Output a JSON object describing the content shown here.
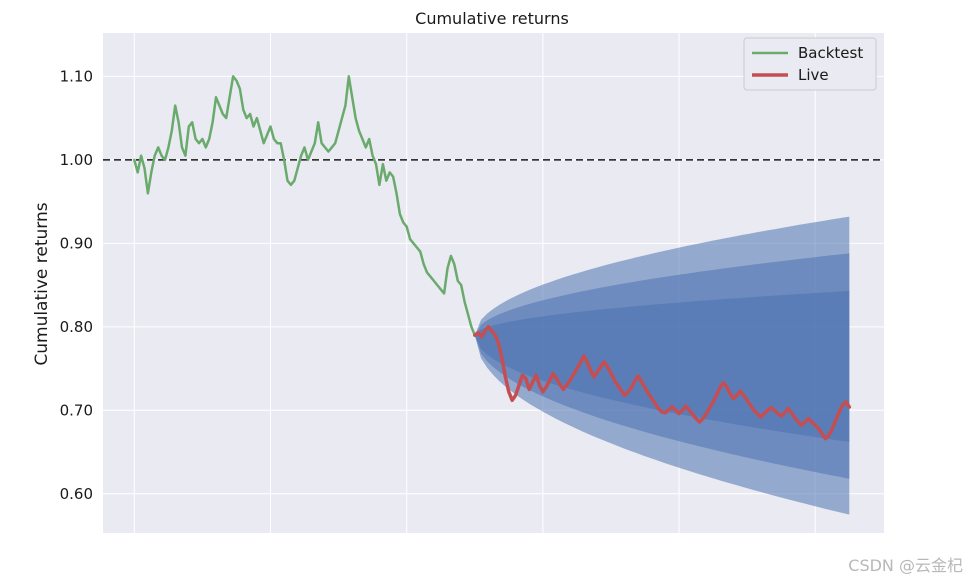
{
  "watermark": "CSDN @云金杞",
  "chart_data": {
    "type": "line",
    "title": "Cumulative returns",
    "ylabel": "Cumulative returns",
    "xlabel": "",
    "ylim": [
      0.553,
      1.152
    ],
    "yticks": [
      0.6,
      0.7,
      0.8,
      0.9,
      1.0,
      1.1
    ],
    "ytick_labels": [
      "0.60",
      "0.70",
      "0.80",
      "0.90",
      "1.00",
      "1.10"
    ],
    "x_unlabeled_gridlines": 6,
    "reference_line": {
      "y": 1.0,
      "style": "dashed"
    },
    "grid": true,
    "legend": {
      "position": "top-right"
    },
    "colors": {
      "background": "#eaeaf2",
      "grid": "#ffffff",
      "backtest": "#6aaa6d",
      "live": "#c44e52",
      "cone": "#4c72b0",
      "reference": "#1a1a1a"
    },
    "series": [
      {
        "name": "Backtest",
        "x": [
          0,
          1,
          2,
          3,
          4,
          5,
          6,
          7,
          8,
          9,
          10,
          11,
          12,
          13,
          14,
          15,
          16,
          17,
          18,
          19,
          20,
          21,
          22,
          23,
          24,
          25,
          26,
          27,
          28,
          29,
          30,
          31,
          32,
          33,
          34,
          35,
          36,
          37,
          38,
          39,
          40,
          41,
          42,
          43,
          44,
          45,
          46,
          47,
          48,
          49,
          50,
          51,
          52,
          53,
          54,
          55,
          56,
          57,
          58,
          59,
          60,
          61,
          62,
          63,
          64,
          65,
          66,
          67,
          68,
          69,
          70,
          71,
          72,
          73,
          74,
          75,
          76,
          77,
          78,
          79,
          80,
          81,
          82,
          83,
          84,
          85,
          86,
          87,
          88,
          89,
          90,
          91,
          92,
          93,
          94,
          95,
          96,
          97,
          98,
          99,
          100
        ],
        "values": [
          1.0,
          0.985,
          1.005,
          0.99,
          0.96,
          0.985,
          1.005,
          1.015,
          1.005,
          1.0,
          1.015,
          1.035,
          1.065,
          1.045,
          1.015,
          1.005,
          1.04,
          1.045,
          1.025,
          1.02,
          1.025,
          1.015,
          1.025,
          1.045,
          1.075,
          1.065,
          1.055,
          1.05,
          1.075,
          1.1,
          1.095,
          1.085,
          1.06,
          1.05,
          1.055,
          1.04,
          1.05,
          1.035,
          1.02,
          1.03,
          1.04,
          1.025,
          1.02,
          1.02,
          1.0,
          0.975,
          0.97,
          0.975,
          0.99,
          1.005,
          1.015,
          1.0,
          1.01,
          1.02,
          1.045,
          1.02,
          1.015,
          1.01,
          1.015,
          1.02,
          1.035,
          1.05,
          1.065,
          1.1,
          1.075,
          1.05,
          1.035,
          1.025,
          1.015,
          1.025,
          1.005,
          0.995,
          0.97,
          0.995,
          0.975,
          0.985,
          0.98,
          0.96,
          0.935,
          0.925,
          0.92,
          0.905,
          0.9,
          0.895,
          0.89,
          0.875,
          0.865,
          0.86,
          0.855,
          0.85,
          0.845,
          0.84,
          0.87,
          0.885,
          0.875,
          0.855,
          0.85,
          0.83,
          0.815,
          0.8,
          0.79
        ]
      },
      {
        "name": "Live",
        "x": [
          100,
          101,
          102,
          103,
          104,
          105,
          106,
          107,
          108,
          109,
          110,
          111,
          112,
          113,
          114,
          115,
          116,
          117,
          118,
          119,
          120,
          121,
          122,
          123,
          124,
          125,
          126,
          127,
          128,
          129,
          130,
          131,
          132,
          133,
          134,
          135,
          136,
          137,
          138,
          139,
          140,
          141,
          142,
          143,
          144,
          145,
          146,
          147,
          148,
          149,
          150,
          151,
          152,
          153,
          154,
          155,
          156,
          157,
          158,
          159,
          160,
          161,
          162,
          163,
          164,
          165,
          166,
          167,
          168,
          169,
          170,
          171,
          172,
          173,
          174,
          175,
          176,
          177,
          178,
          179,
          180,
          181,
          182,
          183,
          184,
          185,
          186,
          187,
          188,
          189,
          190,
          191,
          192,
          193,
          194,
          195,
          196,
          197,
          198,
          199,
          200,
          201,
          202,
          203,
          204,
          205,
          206,
          207,
          208,
          209,
          210
        ],
        "values": [
          0.79,
          0.793,
          0.788,
          0.795,
          0.8,
          0.795,
          0.79,
          0.78,
          0.762,
          0.74,
          0.722,
          0.712,
          0.718,
          0.73,
          0.742,
          0.738,
          0.725,
          0.734,
          0.742,
          0.73,
          0.722,
          0.728,
          0.736,
          0.744,
          0.738,
          0.731,
          0.725,
          0.73,
          0.736,
          0.743,
          0.75,
          0.757,
          0.765,
          0.758,
          0.748,
          0.74,
          0.746,
          0.752,
          0.758,
          0.752,
          0.744,
          0.736,
          0.73,
          0.724,
          0.718,
          0.722,
          0.727,
          0.735,
          0.741,
          0.734,
          0.727,
          0.72,
          0.714,
          0.708,
          0.702,
          0.698,
          0.697,
          0.701,
          0.704,
          0.7,
          0.696,
          0.7,
          0.705,
          0.7,
          0.695,
          0.69,
          0.686,
          0.69,
          0.696,
          0.703,
          0.71,
          0.718,
          0.727,
          0.733,
          0.728,
          0.72,
          0.714,
          0.718,
          0.723,
          0.718,
          0.712,
          0.706,
          0.7,
          0.696,
          0.692,
          0.696,
          0.7,
          0.703,
          0.7,
          0.696,
          0.693,
          0.697,
          0.702,
          0.697,
          0.691,
          0.686,
          0.682,
          0.686,
          0.69,
          0.686,
          0.682,
          0.678,
          0.672,
          0.666,
          0.67,
          0.678,
          0.688,
          0.698,
          0.706,
          0.71,
          0.704
        ]
      }
    ],
    "cone": {
      "x_start": 100,
      "x_end": 210,
      "start_value": 0.79,
      "end_bands": {
        "upper_3": 0.932,
        "upper_2": 0.888,
        "upper_1": 0.843,
        "lower_1": 0.662,
        "lower_2": 0.618,
        "lower_3": 0.575
      }
    }
  }
}
